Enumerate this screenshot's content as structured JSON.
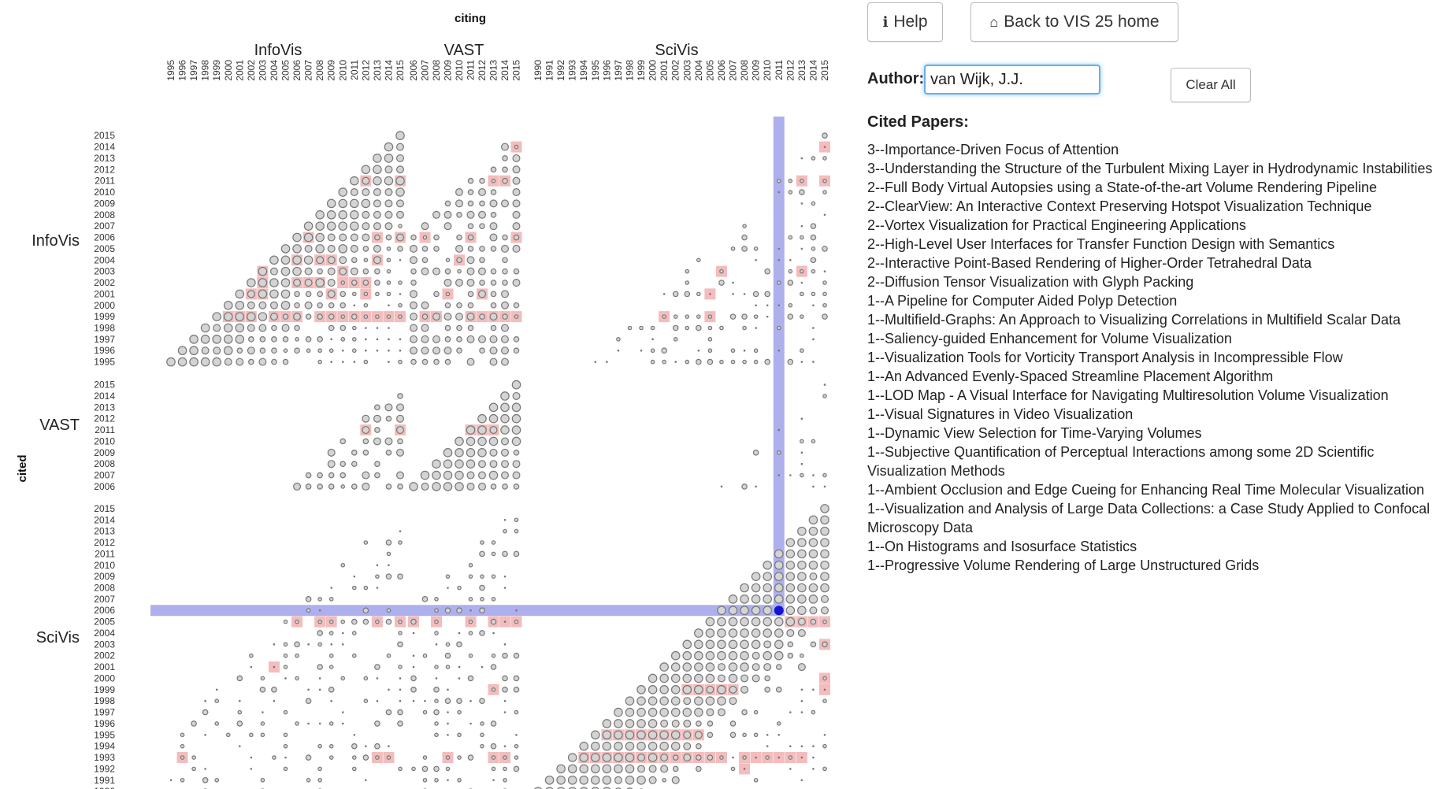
{
  "header": {
    "help_label": "Help",
    "home_label": "Back to VIS 25 home",
    "help_icon": "info-icon",
    "home_icon": "home-icon"
  },
  "author": {
    "label": "Author:",
    "value": "van Wijk, J.J.",
    "clear_label": "Clear All"
  },
  "cited_papers": {
    "title": "Cited Papers:",
    "items": [
      "3--Importance-Driven Focus of Attention",
      "3--Understanding the Structure of the Turbulent Mixing Layer in Hydrodynamic Instabilities",
      "2--Full Body Virtual Autopsies using a State-of-the-art Volume Rendering Pipeline",
      "2--ClearView: An Interactive Context Preserving Hotspot Visualization Technique",
      "2--Vortex Visualization for Practical Engineering Applications",
      "2--High-Level User Interfaces for Transfer Function Design with Semantics",
      "2--Interactive Point-Based Rendering of Higher-Order Tetrahedral Data",
      "2--Diffusion Tensor Visualization with Glyph Packing",
      "1--A Pipeline for Computer Aided Polyp Detection",
      "1--Multifield-Graphs: An Approach to Visualizing Correlations in Multifield Scalar Data",
      "1--Saliency-guided Enhancement for Volume Visualization",
      "1--Visualization Tools for Vorticity Transport Analysis in Incompressible Flow",
      "1--An Advanced Evenly-Spaced Streamline Placement Algorithm",
      "1--LOD Map - A Visual Interface for Navigating Multiresolution Volume Visualization",
      "1--Visual Signatures in Video Visualization",
      "1--Dynamic View Selection for Time-Varying Volumes",
      "1--Subjective Quantification of Perceptual Interactions among some 2D Scientific Visualization Methods",
      "1--Ambient Occlusion and Edge Cueing for Enhancing Real Time Molecular Visualization",
      "1--Visualization and Analysis of Large Data Collections: a Case Study Applied to Confocal Microscopy Data",
      "1--On Histograms and Isosurface Statistics",
      "1--Progressive Volume Rendering of Large Unstructured Grids"
    ]
  },
  "chart_data": {
    "type": "scatter",
    "x_axis_title": "citing",
    "y_axis_title": "cited",
    "conferences": [
      {
        "name": "InfoVis",
        "years": [
          "1995",
          "1996",
          "1997",
          "1998",
          "1999",
          "2000",
          "2001",
          "2002",
          "2003",
          "2004",
          "2005",
          "2006",
          "2007",
          "2008",
          "2009",
          "2010",
          "2011",
          "2012",
          "2013",
          "2014",
          "2015"
        ]
      },
      {
        "name": "VAST",
        "years": [
          "2006",
          "2007",
          "2008",
          "2009",
          "2010",
          "2011",
          "2012",
          "2013",
          "2014",
          "2015"
        ]
      },
      {
        "name": "SciVis",
        "years": [
          "1990",
          "1991",
          "1992",
          "1993",
          "1994",
          "1995",
          "1996",
          "1997",
          "1998",
          "1999",
          "2000",
          "2001",
          "2002",
          "2003",
          "2004",
          "2005",
          "2006",
          "2007",
          "2008",
          "2009",
          "2010",
          "2011",
          "2012",
          "2013",
          "2014",
          "2015"
        ]
      }
    ],
    "selected": {
      "citing_conference": "SciVis",
      "citing_year": "2011",
      "cited_conference": "SciVis",
      "cited_year": "2006"
    },
    "encoding": "circle size = number of citations; pink cell = citation involving selected author",
    "colors": {
      "dot_fill": "#d4d4d4",
      "dot_stroke": "#777777",
      "author_highlight": "#f4bcbc",
      "selection_band": "#aeb0ee",
      "selected_dot": "#1414d2",
      "selected_label": "#2020c0"
    },
    "author_cells": [
      [
        "InfoVis",
        "2015",
        "InfoVis",
        "2011"
      ],
      [
        "InfoVis",
        "2012",
        "InfoVis",
        "2011"
      ],
      [
        "InfoVis",
        "2007",
        "InfoVis",
        "2006"
      ],
      [
        "InfoVis",
        "2013",
        "InfoVis",
        "2006"
      ],
      [
        "InfoVis",
        "2015",
        "InfoVis",
        "2006"
      ],
      [
        "InfoVis",
        "2006",
        "InfoVis",
        "2004"
      ],
      [
        "InfoVis",
        "2008",
        "InfoVis",
        "2004"
      ],
      [
        "InfoVis",
        "2009",
        "InfoVis",
        "2004"
      ],
      [
        "InfoVis",
        "2013",
        "InfoVis",
        "2004"
      ],
      [
        "InfoVis",
        "2003",
        "InfoVis",
        "2003"
      ],
      [
        "InfoVis",
        "2010",
        "InfoVis",
        "2003"
      ],
      [
        "InfoVis",
        "2003",
        "InfoVis",
        "2002"
      ],
      [
        "InfoVis",
        "2006",
        "InfoVis",
        "2002"
      ],
      [
        "InfoVis",
        "2007",
        "InfoVis",
        "2002"
      ],
      [
        "InfoVis",
        "2008",
        "InfoVis",
        "2002"
      ],
      [
        "InfoVis",
        "2010",
        "InfoVis",
        "2002"
      ],
      [
        "InfoVis",
        "2011",
        "InfoVis",
        "2002"
      ],
      [
        "InfoVis",
        "2012",
        "InfoVis",
        "2002"
      ],
      [
        "InfoVis",
        "2002",
        "InfoVis",
        "2001"
      ],
      [
        "InfoVis",
        "2003",
        "InfoVis",
        "2001"
      ],
      [
        "InfoVis",
        "2009",
        "InfoVis",
        "2001"
      ],
      [
        "InfoVis",
        "2012",
        "InfoVis",
        "2001"
      ],
      [
        "InfoVis",
        "2000",
        "InfoVis",
        "1999"
      ],
      [
        "InfoVis",
        "2001",
        "InfoVis",
        "1999"
      ],
      [
        "InfoVis",
        "2002",
        "InfoVis",
        "1999"
      ],
      [
        "InfoVis",
        "2004",
        "InfoVis",
        "1999"
      ],
      [
        "InfoVis",
        "2005",
        "InfoVis",
        "1999"
      ],
      [
        "InfoVis",
        "2006",
        "InfoVis",
        "1999"
      ],
      [
        "InfoVis",
        "2008",
        "InfoVis",
        "1999"
      ],
      [
        "InfoVis",
        "2009",
        "InfoVis",
        "1999"
      ],
      [
        "InfoVis",
        "2010",
        "InfoVis",
        "1999"
      ],
      [
        "InfoVis",
        "2011",
        "InfoVis",
        "1999"
      ],
      [
        "InfoVis",
        "2012",
        "InfoVis",
        "1999"
      ],
      [
        "InfoVis",
        "2013",
        "InfoVis",
        "1999"
      ],
      [
        "InfoVis",
        "2014",
        "InfoVis",
        "1999"
      ],
      [
        "InfoVis",
        "2015",
        "InfoVis",
        "1999"
      ],
      [
        "VAST",
        "2015",
        "InfoVis",
        "2014"
      ],
      [
        "VAST",
        "2013",
        "InfoVis",
        "2011"
      ],
      [
        "VAST",
        "2014",
        "InfoVis",
        "2011"
      ],
      [
        "VAST",
        "2007",
        "InfoVis",
        "2006"
      ],
      [
        "VAST",
        "2015",
        "InfoVis",
        "2006"
      ],
      [
        "VAST",
        "2011",
        "InfoVis",
        "2006"
      ],
      [
        "VAST",
        "2010",
        "InfoVis",
        "2004"
      ],
      [
        "VAST",
        "2009",
        "InfoVis",
        "2001"
      ],
      [
        "VAST",
        "2012",
        "InfoVis",
        "2001"
      ],
      [
        "VAST",
        "2007",
        "InfoVis",
        "1999"
      ],
      [
        "VAST",
        "2008",
        "InfoVis",
        "1999"
      ],
      [
        "VAST",
        "2011",
        "InfoVis",
        "1999"
      ],
      [
        "VAST",
        "2012",
        "InfoVis",
        "1999"
      ],
      [
        "VAST",
        "2013",
        "InfoVis",
        "1999"
      ],
      [
        "VAST",
        "2014",
        "InfoVis",
        "1999"
      ],
      [
        "VAST",
        "2015",
        "InfoVis",
        "1999"
      ],
      [
        "SciVis",
        "2015",
        "InfoVis",
        "2014"
      ],
      [
        "SciVis",
        "2013",
        "InfoVis",
        "2011"
      ],
      [
        "SciVis",
        "2015",
        "InfoVis",
        "2011"
      ],
      [
        "SciVis",
        "2006",
        "InfoVis",
        "2003"
      ],
      [
        "SciVis",
        "2013",
        "InfoVis",
        "2003"
      ],
      [
        "SciVis",
        "2005",
        "InfoVis",
        "2001"
      ],
      [
        "SciVis",
        "2001",
        "InfoVis",
        "1999"
      ],
      [
        "SciVis",
        "2005",
        "InfoVis",
        "1999"
      ],
      [
        "InfoVis",
        "2012",
        "VAST",
        "2011"
      ],
      [
        "InfoVis",
        "2015",
        "VAST",
        "2011"
      ],
      [
        "VAST",
        "2011",
        "VAST",
        "2011"
      ],
      [
        "VAST",
        "2012",
        "VAST",
        "2011"
      ],
      [
        "VAST",
        "2013",
        "VAST",
        "2011"
      ],
      [
        "InfoVis",
        "2006",
        "SciVis",
        "2005"
      ],
      [
        "InfoVis",
        "2008",
        "SciVis",
        "2005"
      ],
      [
        "InfoVis",
        "2009",
        "SciVis",
        "2005"
      ],
      [
        "InfoVis",
        "2013",
        "SciVis",
        "2005"
      ],
      [
        "InfoVis",
        "2015",
        "SciVis",
        "2005"
      ],
      [
        "InfoVis",
        "2004",
        "SciVis",
        "2001"
      ],
      [
        "InfoVis",
        "1996",
        "SciVis",
        "1993"
      ],
      [
        "InfoVis",
        "2013",
        "SciVis",
        "1993"
      ],
      [
        "InfoVis",
        "2014",
        "SciVis",
        "1993"
      ],
      [
        "VAST",
        "2006",
        "SciVis",
        "2005"
      ],
      [
        "VAST",
        "2008",
        "SciVis",
        "2005"
      ],
      [
        "VAST",
        "2011",
        "SciVis",
        "2005"
      ],
      [
        "VAST",
        "2013",
        "SciVis",
        "2005"
      ],
      [
        "VAST",
        "2014",
        "SciVis",
        "2005"
      ],
      [
        "VAST",
        "2015",
        "SciVis",
        "2005"
      ],
      [
        "VAST",
        "2013",
        "SciVis",
        "1999"
      ],
      [
        "VAST",
        "2009",
        "SciVis",
        "1993"
      ],
      [
        "VAST",
        "2013",
        "SciVis",
        "1993"
      ],
      [
        "VAST",
        "2014",
        "SciVis",
        "1993"
      ],
      [
        "SciVis",
        "2012",
        "SciVis",
        "2005"
      ],
      [
        "SciVis",
        "2013",
        "SciVis",
        "2005"
      ],
      [
        "SciVis",
        "2014",
        "SciVis",
        "2005"
      ],
      [
        "SciVis",
        "2015",
        "SciVis",
        "2005"
      ],
      [
        "SciVis",
        "2015",
        "SciVis",
        "2003"
      ],
      [
        "SciVis",
        "2015",
        "SciVis",
        "2000"
      ],
      [
        "SciVis",
        "2015",
        "SciVis",
        "1999"
      ],
      [
        "SciVis",
        "2003",
        "SciVis",
        "1999"
      ],
      [
        "SciVis",
        "2004",
        "SciVis",
        "1999"
      ],
      [
        "SciVis",
        "2005",
        "SciVis",
        "1999"
      ],
      [
        "SciVis",
        "2006",
        "SciVis",
        "1999"
      ],
      [
        "SciVis",
        "2007",
        "SciVis",
        "1999"
      ],
      [
        "SciVis",
        "1996",
        "SciVis",
        "1995"
      ],
      [
        "SciVis",
        "1997",
        "SciVis",
        "1995"
      ],
      [
        "SciVis",
        "1998",
        "SciVis",
        "1995"
      ],
      [
        "SciVis",
        "1999",
        "SciVis",
        "1995"
      ],
      [
        "SciVis",
        "2000",
        "SciVis",
        "1995"
      ],
      [
        "SciVis",
        "2001",
        "SciVis",
        "1995"
      ],
      [
        "SciVis",
        "2002",
        "SciVis",
        "1995"
      ],
      [
        "SciVis",
        "2003",
        "SciVis",
        "1995"
      ],
      [
        "SciVis",
        "2004",
        "SciVis",
        "1995"
      ],
      [
        "SciVis",
        "1994",
        "SciVis",
        "1993"
      ],
      [
        "SciVis",
        "1995",
        "SciVis",
        "1993"
      ],
      [
        "SciVis",
        "1996",
        "SciVis",
        "1993"
      ],
      [
        "SciVis",
        "1997",
        "SciVis",
        "1993"
      ],
      [
        "SciVis",
        "1998",
        "SciVis",
        "1993"
      ],
      [
        "SciVis",
        "1999",
        "SciVis",
        "1993"
      ],
      [
        "SciVis",
        "2000",
        "SciVis",
        "1993"
      ],
      [
        "SciVis",
        "2001",
        "SciVis",
        "1993"
      ],
      [
        "SciVis",
        "2002",
        "SciVis",
        "1993"
      ],
      [
        "SciVis",
        "2003",
        "SciVis",
        "1993"
      ],
      [
        "SciVis",
        "2004",
        "SciVis",
        "1993"
      ],
      [
        "SciVis",
        "2005",
        "SciVis",
        "1993"
      ],
      [
        "SciVis",
        "2006",
        "SciVis",
        "1993"
      ],
      [
        "SciVis",
        "2008",
        "SciVis",
        "1993"
      ],
      [
        "SciVis",
        "2009",
        "SciVis",
        "1993"
      ],
      [
        "SciVis",
        "2010",
        "SciVis",
        "1993"
      ],
      [
        "SciVis",
        "2011",
        "SciVis",
        "1993"
      ],
      [
        "SciVis",
        "2012",
        "SciVis",
        "1993"
      ],
      [
        "SciVis",
        "2013",
        "SciVis",
        "1993"
      ],
      [
        "SciVis",
        "2008",
        "SciVis",
        "1992"
      ]
    ]
  }
}
